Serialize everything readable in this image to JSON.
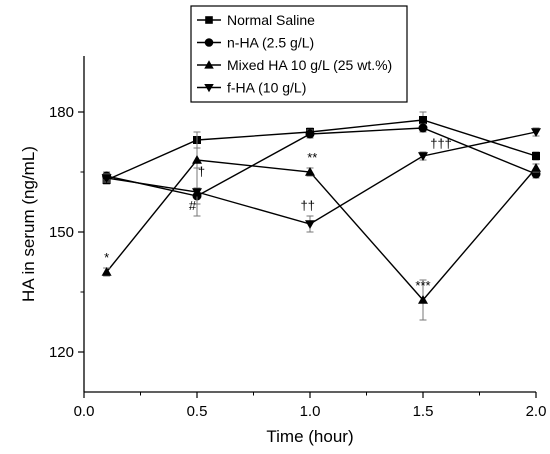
{
  "chart_data": {
    "type": "line",
    "title": "",
    "xlabel": "Time (hour)",
    "ylabel": "HA in serum (ng/mL)",
    "xlim": [
      0.0,
      2.0
    ],
    "ylim": [
      110,
      194
    ],
    "xticks": [
      "0.0",
      "0.5",
      "1.0",
      "1.5",
      "2.0"
    ],
    "xtick_values": [
      0.0,
      0.5,
      1.0,
      1.5,
      2.0
    ],
    "yticks": [
      "120",
      "150",
      "180"
    ],
    "ytick_values": [
      120,
      150,
      180
    ],
    "grid": false,
    "legend_position": "top-center",
    "series": [
      {
        "name": "Normal Saline",
        "marker": "square",
        "x": [
          0.1,
          0.5,
          1.0,
          1.5,
          2.0
        ],
        "y": [
          163,
          173,
          175,
          178,
          169
        ],
        "err": [
          1,
          2,
          1,
          2,
          1
        ]
      },
      {
        "name": "n-HA (2.5 g/L)",
        "marker": "circle",
        "x": [
          0.1,
          0.5,
          1.0,
          1.5,
          2.0
        ],
        "y": [
          164,
          159,
          174.5,
          176,
          164.5
        ],
        "err": [
          1,
          2,
          1,
          1,
          1
        ]
      },
      {
        "name": "Mixed HA 10 g/L (25 wt.%)",
        "marker": "triangle-up",
        "x": [
          0.1,
          0.5,
          1.0,
          1.5,
          2.0
        ],
        "y": [
          140,
          168,
          165,
          133,
          166
        ],
        "err": [
          1,
          7,
          1,
          5,
          1
        ]
      },
      {
        "name": "f-HA (10 g/L)",
        "marker": "triangle-down",
        "x": [
          0.1,
          0.5,
          1.0,
          1.5,
          2.0
        ],
        "y": [
          163.5,
          160,
          152,
          169,
          175
        ],
        "err": [
          1,
          6,
          2,
          1,
          1
        ]
      }
    ],
    "annotations": [
      {
        "text": "*",
        "x": 0.1,
        "y": 142.5
      },
      {
        "text": "#",
        "x": 0.48,
        "y": 155.5
      },
      {
        "text": "†",
        "x": 0.52,
        "y": 164
      },
      {
        "text": "**",
        "x": 1.01,
        "y": 167.5
      },
      {
        "text": "††",
        "x": 0.99,
        "y": 155.5
      },
      {
        "text": "***",
        "x": 1.5,
        "y": 135.5
      },
      {
        "text": "†††",
        "x": 1.58,
        "y": 171
      }
    ]
  }
}
